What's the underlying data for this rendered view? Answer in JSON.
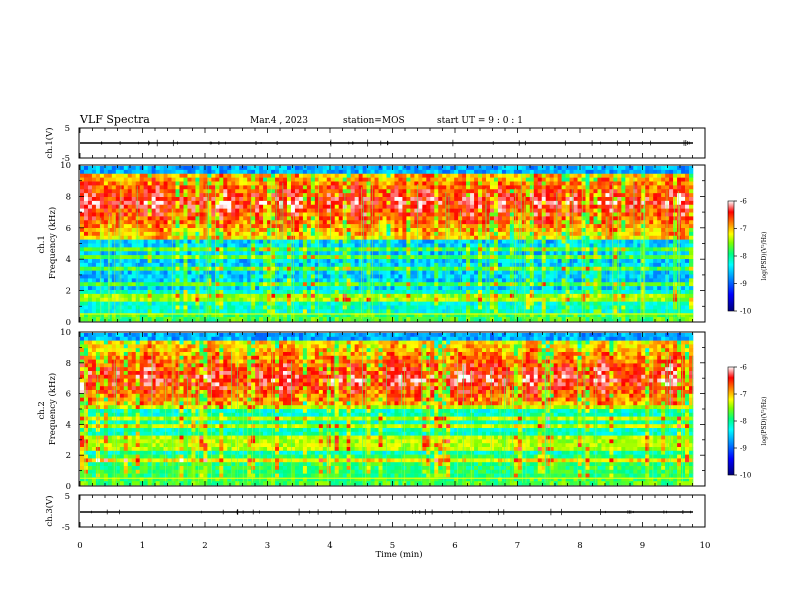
{
  "header": {
    "title": "VLF Spectra",
    "date": "Mar.4 , 2023",
    "station": "station=MOS",
    "start": "start UT =  9 : 0 : 1"
  },
  "chart_data": [
    {
      "id": "ch1_waveform",
      "type": "line",
      "ylabel": "ch.1(V)",
      "ylim": [
        -5,
        5
      ],
      "yticks": [
        "5",
        "-5"
      ],
      "xlim": [
        0,
        10
      ],
      "baseline": 0
    },
    {
      "id": "ch1_spectrogram",
      "type": "heatmap",
      "ylabel": "ch.1\nFrequency (kHz)",
      "ylabel_lines": [
        "ch.1",
        "Frequency (kHz)"
      ],
      "ylim": [
        0,
        10
      ],
      "yticks": [
        "0",
        "2",
        "4",
        "6",
        "8",
        "10"
      ],
      "xlim": [
        0,
        10
      ],
      "colorbar": {
        "label": "log(PSD)(V²/Hz)",
        "range": [
          -10,
          -6
        ],
        "ticks": [
          "-6",
          "-7",
          "-8",
          "-9",
          "-10"
        ]
      }
    },
    {
      "id": "ch2_spectrogram",
      "type": "heatmap",
      "ylabel": "ch.2\nFrequency (kHz)",
      "ylabel_lines": [
        "ch.2",
        "Frequency (kHz)"
      ],
      "ylim": [
        0,
        10
      ],
      "yticks": [
        "0",
        "2",
        "4",
        "6",
        "8",
        "10"
      ],
      "xlim": [
        0,
        10
      ],
      "colorbar": {
        "label": "log(PSD)(V²/Hz)",
        "range": [
          -10,
          -6
        ],
        "ticks": [
          "-6",
          "-7",
          "-8",
          "-9",
          "-10"
        ]
      }
    },
    {
      "id": "ch3_waveform",
      "type": "line",
      "ylabel": "ch.3(V)",
      "ylim": [
        -5,
        5
      ],
      "yticks": [
        "5",
        "-5"
      ],
      "xlim": [
        0,
        10
      ],
      "baseline": 0
    }
  ],
  "xaxis": {
    "label": "Time (min)",
    "ticks": [
      "0",
      "1",
      "2",
      "3",
      "4",
      "5",
      "6",
      "7",
      "8",
      "9",
      "10"
    ]
  },
  "colors": {
    "spectrum": [
      "#00007a",
      "#0000ff",
      "#0090ff",
      "#00ffff",
      "#00ff80",
      "#80ff00",
      "#ffff00",
      "#ff8000",
      "#ff0000",
      "#ffffff"
    ]
  }
}
